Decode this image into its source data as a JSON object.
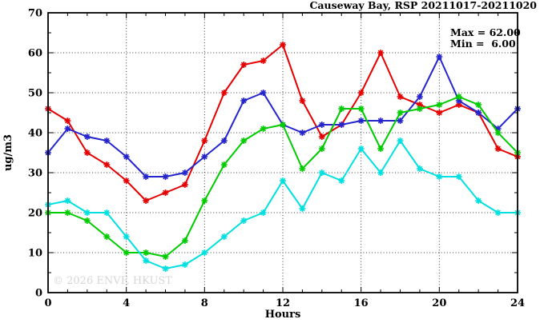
{
  "watermark": "© 2026 ENVF, HKUST",
  "chart_data": {
    "type": "line",
    "title": "Causeway Bay, RSP 20211017-20211020",
    "xlabel": "Hours",
    "ylabel": "ug/m3",
    "xlim": [
      0,
      24
    ],
    "ylim": [
      0,
      70
    ],
    "x_ticks": [
      0,
      4,
      8,
      12,
      16,
      20,
      24
    ],
    "y_ticks": [
      0,
      10,
      20,
      30,
      40,
      50,
      60,
      70
    ],
    "grid": true,
    "legend_position": "top-right-inside",
    "stats": {
      "max": 62.0,
      "min": 6.0
    },
    "stats_labels": {
      "max": "Max = 62.00",
      "min": "Min =  6.00"
    },
    "x": [
      0,
      1,
      2,
      3,
      4,
      5,
      6,
      7,
      8,
      9,
      10,
      11,
      12,
      13,
      14,
      15,
      16,
      17,
      18,
      19,
      20,
      21,
      22,
      23,
      24
    ],
    "series": [
      {
        "name": "series-red",
        "color": "#e60000",
        "values": [
          46,
          43,
          35,
          32,
          28,
          23,
          25,
          27,
          38,
          50,
          57,
          58,
          62,
          48,
          39,
          42,
          50,
          60,
          49,
          47,
          45,
          47,
          45,
          36,
          34
        ]
      },
      {
        "name": "series-blue",
        "color": "#2525cc",
        "values": [
          35,
          41,
          39,
          38,
          34,
          29,
          29,
          30,
          34,
          38,
          48,
          50,
          42,
          40,
          42,
          42,
          43,
          43,
          43,
          49,
          59,
          48,
          45,
          41,
          46
        ]
      },
      {
        "name": "series-green",
        "color": "#00cc00",
        "values": [
          20,
          20,
          18,
          14,
          10,
          10,
          9,
          13,
          23,
          32,
          38,
          41,
          42,
          31,
          36,
          46,
          46,
          36,
          45,
          46,
          47,
          49,
          47,
          40,
          35
        ]
      },
      {
        "name": "series-cyan",
        "color": "#00e0e0",
        "values": [
          22,
          23,
          20,
          20,
          14,
          8,
          6,
          7,
          10,
          14,
          18,
          20,
          28,
          21,
          30,
          28,
          36,
          30,
          38,
          31,
          29,
          29,
          23,
          20,
          20
        ]
      }
    ]
  }
}
